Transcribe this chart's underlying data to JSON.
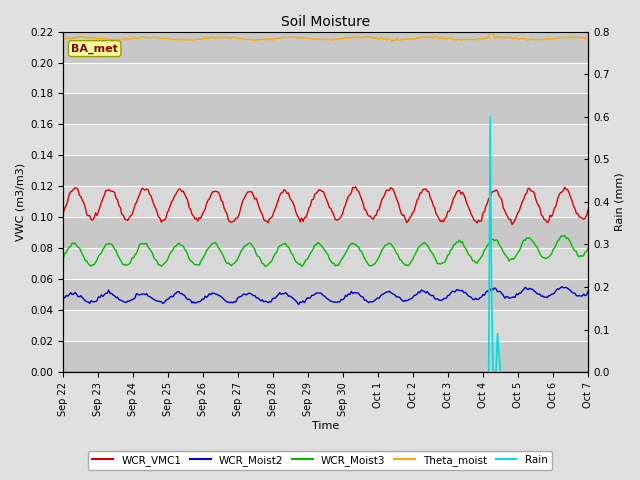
{
  "title": "Soil Moisture",
  "xlabel": "Time",
  "ylabel_left": "VWC (m3/m3)",
  "ylabel_right": "Rain (mm)",
  "ylim_left": [
    0.0,
    0.22
  ],
  "ylim_right": [
    0.0,
    0.8
  ],
  "background_color": "#e0e0e0",
  "plot_bg_color": "#d4d4d4",
  "grid_color": "#ffffff",
  "station_label": "BA_met",
  "colors": {
    "WCR_VMC1": "#dd0000",
    "WCR_Moist2": "#0000cc",
    "WCR_Moist3": "#00bb00",
    "Theta_moist": "#ffaa00",
    "Rain": "#00dddd"
  },
  "legend_labels": [
    "WCR_VMC1",
    "WCR_Moist2",
    "WCR_Moist3",
    "Theta_moist",
    "Rain"
  ],
  "tick_labels": [
    "Sep 22",
    "Sep 23",
    "Sep 24",
    "Sep 25",
    "Sep 26",
    "Sep 27",
    "Sep 28",
    "Sep 29",
    "Sep 30",
    "Oct 1",
    "Oct 2",
    "Oct 3",
    "Oct 4",
    "Oct 5",
    "Oct 6",
    "Oct 7"
  ],
  "n_days": 15,
  "rain_event_day": 12.17,
  "rain_peak1_mm": 0.6,
  "rain_peak2_mm": 0.09,
  "theta_base": 0.2155,
  "wcr1_base": 0.108,
  "wcr1_amp": 0.01,
  "wcr2_base": 0.048,
  "wcr2_amp": 0.003,
  "wcr3_base": 0.076,
  "wcr3_amp": 0.007,
  "band_colors": [
    "#c8c8c8",
    "#d8d8d8"
  ]
}
